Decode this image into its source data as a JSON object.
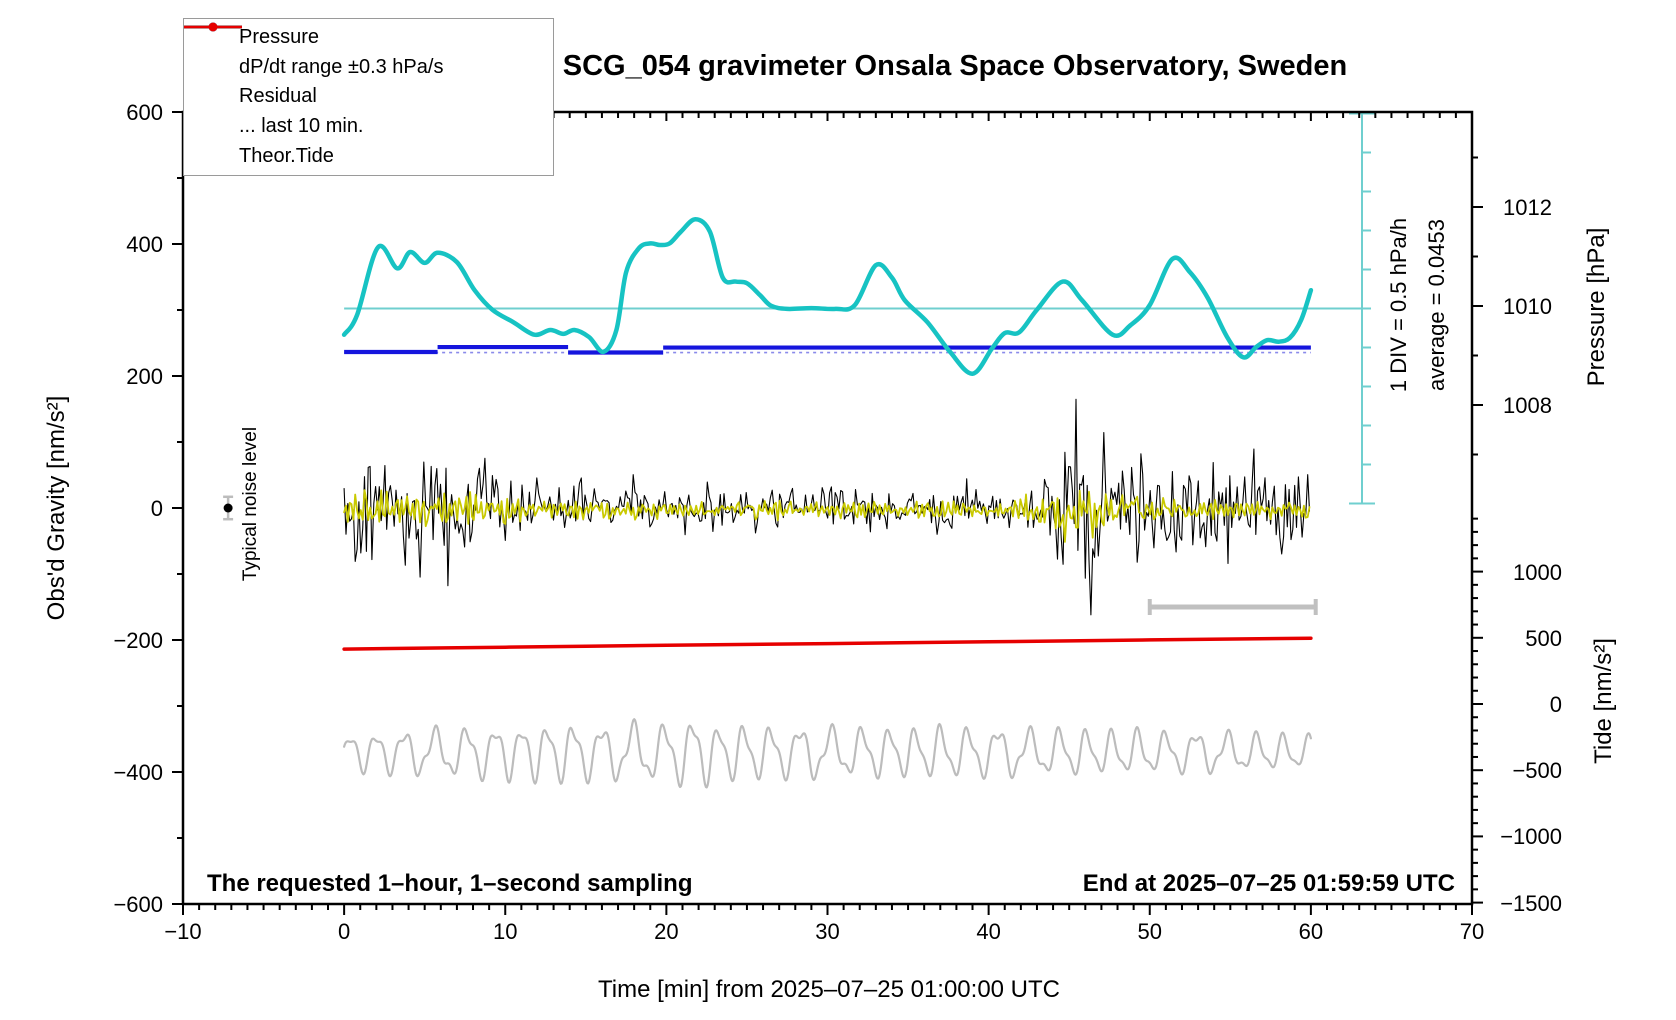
{
  "title": "SCG_054 gravimeter Onsala Space Observatory, Sweden",
  "annotations": {
    "sampling_note": "The requested 1–hour, 1–second sampling",
    "end_time": "End at 2025–07–25 01:59:59 UTC",
    "noise_label": "Typical noise level",
    "div_scale": "1 DIV = 0.5 hPa/h",
    "average_label": "average = 0.0453"
  },
  "axes": {
    "x": {
      "title": "Time [min] from 2025–07–25 01:00:00 UTC",
      "range": [
        -10,
        70
      ],
      "minor_step": 1,
      "ticks": [
        {
          "v": -10,
          "label": "−10"
        },
        {
          "v": 0,
          "label": "0"
        },
        {
          "v": 10,
          "label": "10"
        },
        {
          "v": 20,
          "label": "20"
        },
        {
          "v": 30,
          "label": "30"
        },
        {
          "v": 40,
          "label": "40"
        },
        {
          "v": 50,
          "label": "50"
        },
        {
          "v": 60,
          "label": "60"
        },
        {
          "v": 70,
          "label": "70"
        }
      ]
    },
    "left": {
      "title": "Obs'd Gravity [nm/s²]",
      "range": [
        -600,
        600
      ],
      "minor_step": 100,
      "ticks": [
        {
          "v": 600,
          "label": "600"
        },
        {
          "v": 400,
          "label": "400"
        },
        {
          "v": 200,
          "label": "200"
        },
        {
          "v": 0,
          "label": "0"
        },
        {
          "v": -200,
          "label": "−200"
        },
        {
          "v": -400,
          "label": "−400"
        },
        {
          "v": -600,
          "label": "−600"
        }
      ]
    },
    "pressure": {
      "title": "Pressure [hPa]",
      "minor_step": 1,
      "ticks": [
        {
          "v": 1012,
          "label": "1012"
        },
        {
          "v": 1010,
          "label": "1010"
        },
        {
          "v": 1008,
          "label": "1008"
        }
      ]
    },
    "tide": {
      "title": "Tide [nm/s²]",
      "minor_step": 100,
      "ticks": [
        {
          "v": 1000,
          "label": "1000"
        },
        {
          "v": 500,
          "label": "500"
        },
        {
          "v": 0,
          "label": "0"
        },
        {
          "v": -500,
          "label": "−500"
        },
        {
          "v": -1000,
          "label": "−1000"
        },
        {
          "v": -1500,
          "label": "−1500"
        }
      ]
    }
  },
  "legend": {
    "items": [
      {
        "id": "pressure",
        "label": "Pressure",
        "color": "#1515dd",
        "lw": 2.5,
        "marker": true
      },
      {
        "id": "dpdt",
        "label": "dP/dt range ±0.3 hPa/s",
        "color": "#17c3c3",
        "lw": 2.5,
        "marker": true
      },
      {
        "id": "residual",
        "label": "Residual",
        "color": "#000000",
        "lw": 4,
        "marker": false
      },
      {
        "id": "last10",
        "label": "... last 10 min.",
        "color": "#bcbcbc",
        "lw": 4,
        "marker": false
      },
      {
        "id": "tide",
        "label": "Theor.Tide",
        "color": "#e60000",
        "lw": 2.5,
        "marker": true
      }
    ]
  },
  "colors": {
    "cyan": "#17c3c3",
    "cyan_thin": "#6fcfcf",
    "blue": "#1515dd",
    "blue_raw": "#8a8aea",
    "red": "#e60000",
    "yellow": "#c9c900",
    "gray": "#bcbcbc",
    "black": "#000000"
  },
  "chart_data": {
    "type": "line",
    "x": {
      "label": "Time [min]",
      "axis_range": [
        -10,
        70
      ],
      "data_range": [
        0,
        60
      ]
    },
    "series": [
      {
        "name": "Pressure",
        "axis": "pressure_hPa",
        "style": "step-segments",
        "segments": [
          [
            0,
            5.8,
            1009.07
          ],
          [
            5.8,
            13.9,
            1009.17
          ],
          [
            13.9,
            19.8,
            1009.06
          ],
          [
            19.8,
            60,
            1009.16
          ]
        ]
      },
      {
        "name": "Pressure raw",
        "axis": "pressure_hPa",
        "style": "dashed",
        "value": 1009.06,
        "t_range": [
          0,
          60
        ]
      },
      {
        "name": "dP/dt",
        "axis": "hPa_per_h",
        "average": 0.0453,
        "div_value": 0.5,
        "points": [
          [
            0,
            -0.29
          ],
          [
            0.8,
            -0.04
          ],
          [
            2.1,
            0.83
          ],
          [
            3.3,
            0.56
          ],
          [
            4.1,
            0.77
          ],
          [
            5.0,
            0.63
          ],
          [
            5.8,
            0.76
          ],
          [
            7.0,
            0.64
          ],
          [
            8.1,
            0.28
          ],
          [
            9.2,
            0.03
          ],
          [
            10.5,
            -0.13
          ],
          [
            11.8,
            -0.29
          ],
          [
            12.8,
            -0.23
          ],
          [
            13.6,
            -0.28
          ],
          [
            14.3,
            -0.23
          ],
          [
            15.2,
            -0.32
          ],
          [
            16.1,
            -0.51
          ],
          [
            16.9,
            -0.23
          ],
          [
            17.5,
            0.51
          ],
          [
            18.3,
            0.82
          ],
          [
            19.0,
            0.88
          ],
          [
            19.6,
            0.86
          ],
          [
            20.2,
            0.88
          ],
          [
            20.9,
            1.03
          ],
          [
            21.8,
            1.19
          ],
          [
            22.7,
            1.03
          ],
          [
            23.5,
            0.44
          ],
          [
            24.3,
            0.39
          ],
          [
            25.0,
            0.37
          ],
          [
            25.8,
            0.22
          ],
          [
            26.5,
            0.08
          ],
          [
            27.5,
            0.04
          ],
          [
            29.0,
            0.05
          ],
          [
            30.5,
            0.04
          ],
          [
            31.7,
            0.09
          ],
          [
            33.0,
            0.6
          ],
          [
            34.0,
            0.44
          ],
          [
            34.8,
            0.15
          ],
          [
            36.2,
            -0.13
          ],
          [
            37.6,
            -0.51
          ],
          [
            39.0,
            -0.79
          ],
          [
            40.2,
            -0.47
          ],
          [
            41.0,
            -0.27
          ],
          [
            41.9,
            -0.26
          ],
          [
            43.0,
            0.03
          ],
          [
            44.6,
            0.39
          ],
          [
            45.8,
            0.15
          ],
          [
            47.7,
            -0.29
          ],
          [
            48.8,
            -0.17
          ],
          [
            50.0,
            0.09
          ],
          [
            51.4,
            0.68
          ],
          [
            52.5,
            0.51
          ],
          [
            53.6,
            0.18
          ],
          [
            54.8,
            -0.32
          ],
          [
            55.8,
            -0.58
          ],
          [
            56.6,
            -0.45
          ],
          [
            57.3,
            -0.36
          ],
          [
            58.0,
            -0.38
          ],
          [
            58.7,
            -0.33
          ],
          [
            59.4,
            -0.1
          ],
          [
            60.0,
            0.28
          ]
        ]
      },
      {
        "name": "Residual",
        "axis": "gravity_nm_s2",
        "style": "noise",
        "mean": 0,
        "amplitude_envelope": [
          [
            0,
            110
          ],
          [
            0.5,
            125
          ],
          [
            1.5,
            115
          ],
          [
            3,
            120
          ],
          [
            4.5,
            110
          ],
          [
            6,
            115
          ],
          [
            7.5,
            105
          ],
          [
            9,
            115
          ],
          [
            9.8,
            90
          ],
          [
            10.5,
            60
          ],
          [
            12,
            52
          ],
          [
            14,
            58
          ],
          [
            16,
            50
          ],
          [
            18,
            48
          ],
          [
            20,
            46
          ],
          [
            22,
            50
          ],
          [
            24,
            44
          ],
          [
            26,
            46
          ],
          [
            28,
            48
          ],
          [
            30,
            50
          ],
          [
            32,
            46
          ],
          [
            34,
            44
          ],
          [
            36,
            48
          ],
          [
            38,
            50
          ],
          [
            40,
            52
          ],
          [
            41.5,
            55
          ],
          [
            43,
            70
          ],
          [
            44,
            120
          ],
          [
            45,
            200
          ],
          [
            45.7,
            235
          ],
          [
            46.3,
            225
          ],
          [
            47,
            200
          ],
          [
            47.8,
            170
          ],
          [
            48.5,
            130
          ],
          [
            49.5,
            110
          ],
          [
            50.5,
            100
          ],
          [
            52,
            95
          ],
          [
            53.5,
            88
          ],
          [
            55,
            92
          ],
          [
            56.5,
            85
          ],
          [
            58,
            88
          ],
          [
            60,
            82
          ]
        ]
      },
      {
        "name": "Residual filtered",
        "axis": "gravity_nm_s2",
        "style": "noise",
        "mean": 0,
        "amplitude_envelope": [
          [
            0,
            38
          ],
          [
            1,
            42
          ],
          [
            3,
            36
          ],
          [
            5,
            34
          ],
          [
            7,
            32
          ],
          [
            9,
            34
          ],
          [
            10,
            26
          ],
          [
            12,
            20
          ],
          [
            15,
            18
          ],
          [
            18,
            16
          ],
          [
            20,
            15
          ],
          [
            23,
            17
          ],
          [
            26,
            16
          ],
          [
            29,
            18
          ],
          [
            32,
            17
          ],
          [
            35,
            16
          ],
          [
            38,
            18
          ],
          [
            40,
            20
          ],
          [
            42,
            24
          ],
          [
            43.5,
            40
          ],
          [
            44.5,
            62
          ],
          [
            45.3,
            72
          ],
          [
            46,
            68
          ],
          [
            47,
            55
          ],
          [
            48,
            45
          ],
          [
            49,
            35
          ],
          [
            50,
            28
          ],
          [
            52,
            24
          ],
          [
            54,
            22
          ],
          [
            56,
            20
          ],
          [
            58,
            19
          ],
          [
            60,
            18
          ]
        ]
      },
      {
        "name": "Last 10 min residual",
        "axis": "gravity_nm_s2",
        "style": "oscillation",
        "mean": -370,
        "period_min": 1.75,
        "amplitude_envelope": [
          [
            0,
            28
          ],
          [
            2,
            30
          ],
          [
            4,
            34
          ],
          [
            6,
            36
          ],
          [
            8,
            38
          ],
          [
            10,
            40
          ],
          [
            12,
            42
          ],
          [
            14,
            44
          ],
          [
            16,
            40
          ],
          [
            18,
            44
          ],
          [
            20,
            42
          ],
          [
            22,
            55
          ],
          [
            23,
            40
          ],
          [
            25,
            42
          ],
          [
            27,
            38
          ],
          [
            29,
            40
          ],
          [
            31,
            36
          ],
          [
            33,
            38
          ],
          [
            35,
            36
          ],
          [
            37,
            40
          ],
          [
            39,
            36
          ],
          [
            41,
            38
          ],
          [
            43,
            34
          ],
          [
            45,
            36
          ],
          [
            47,
            32
          ],
          [
            49,
            34
          ],
          [
            51,
            30
          ],
          [
            53,
            32
          ],
          [
            55,
            30
          ],
          [
            57,
            28
          ],
          [
            59,
            26
          ],
          [
            60,
            25
          ]
        ]
      },
      {
        "name": "Theor.Tide",
        "axis": "tide_nm_s2",
        "points": [
          [
            0,
            415
          ],
          [
            10,
            429
          ],
          [
            20,
            443
          ],
          [
            30,
            456
          ],
          [
            40,
            470
          ],
          [
            50,
            484
          ],
          [
            60,
            497
          ]
        ]
      },
      {
        "name": "Typical noise level marker",
        "axis": "gravity_nm_s2",
        "t": -7.2,
        "value": 0,
        "error": 17
      },
      {
        "name": "Last 10 min interval bar",
        "axis": "gravity_nm_s2",
        "t_range": [
          50,
          60.3
        ],
        "value": -150
      }
    ]
  }
}
